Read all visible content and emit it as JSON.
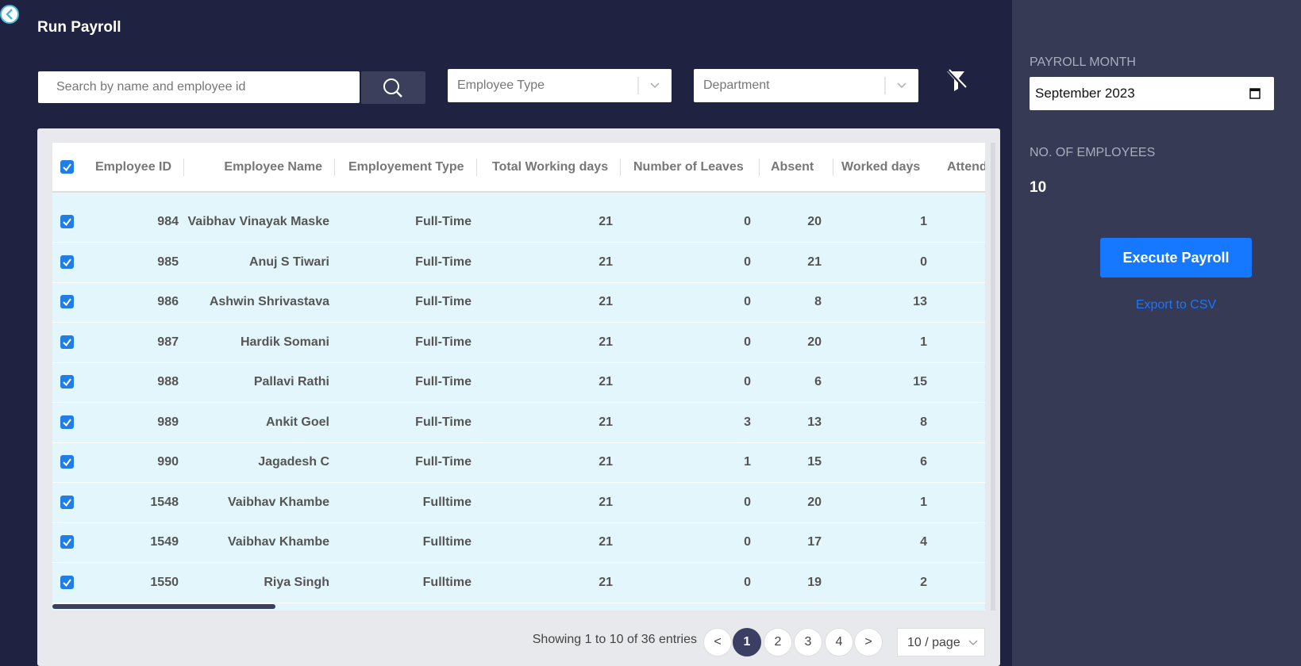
{
  "header": {
    "title": "Run Payroll"
  },
  "filters": {
    "search_placeholder": "Search by name and employee id",
    "employee_type": "Employee Type",
    "department": "Department"
  },
  "table": {
    "columns": [
      "Employee ID",
      "Employee Name",
      "Employement Type",
      "Total Working days",
      "Number of Leaves",
      "Absent",
      "Worked days",
      "Attend"
    ],
    "rows": [
      [
        984,
        "Vaibhav Vinayak Maske",
        "Full-Time",
        21,
        0,
        20,
        1
      ],
      [
        985,
        "Anuj S Tiwari",
        "Full-Time",
        21,
        0,
        21,
        0
      ],
      [
        986,
        "Ashwin Shrivastava",
        "Full-Time",
        21,
        0,
        8,
        13
      ],
      [
        987,
        "Hardik Somani",
        "Full-Time",
        21,
        0,
        20,
        1
      ],
      [
        988,
        "Pallavi Rathi",
        "Full-Time",
        21,
        0,
        6,
        15
      ],
      [
        989,
        "Ankit Goel",
        "Full-Time",
        21,
        3,
        13,
        8
      ],
      [
        990,
        "Jagadesh C",
        "Full-Time",
        21,
        1,
        15,
        6
      ],
      [
        1548,
        "Vaibhav Khambe",
        "Fulltime",
        21,
        0,
        20,
        1
      ],
      [
        1549,
        "Vaibhav Khambe",
        "Fulltime",
        21,
        0,
        17,
        4
      ],
      [
        1550,
        "Riya Singh",
        "Fulltime",
        21,
        0,
        19,
        2
      ]
    ]
  },
  "pagination": {
    "summary": "Showing 1 to 10 of 36 entries",
    "prev": "<",
    "pages": [
      "1",
      "2",
      "3",
      "4"
    ],
    "next": ">",
    "page_size": "10 / page"
  },
  "side_panel": {
    "payroll_month_label": "PAYROLL MONTH",
    "payroll_month": "September 2023",
    "employees_label": "NO. OF EMPLOYEES",
    "employees_count": "10",
    "execute": "Execute Payroll",
    "export": "Export to CSV"
  }
}
